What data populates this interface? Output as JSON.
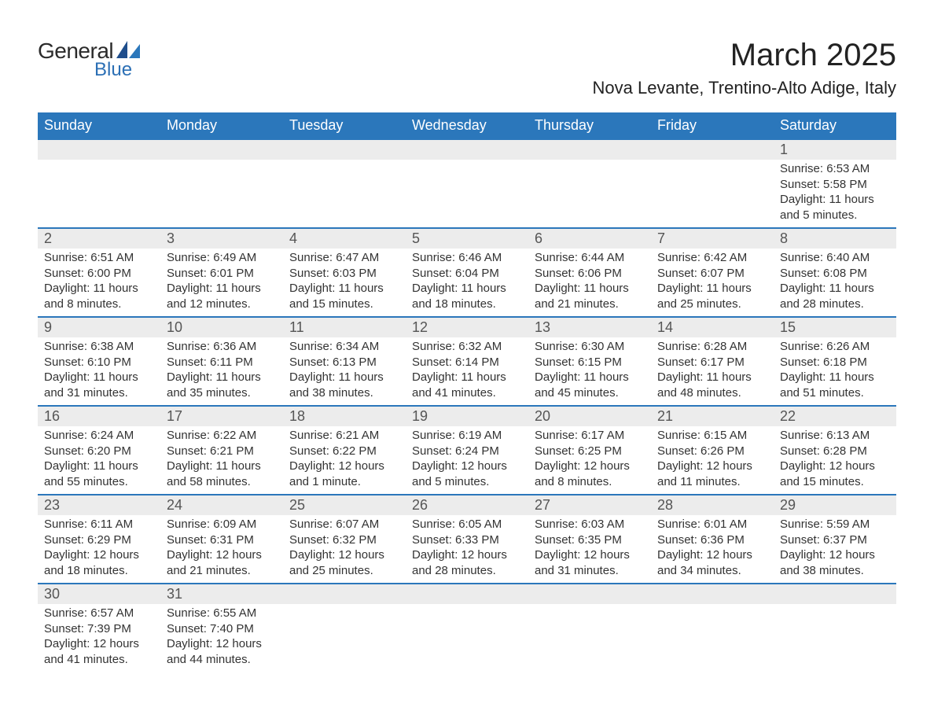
{
  "logo": {
    "general": "General",
    "blue": "Blue"
  },
  "title": "March 2025",
  "location": "Nova Levante, Trentino-Alto Adige, Italy",
  "colors": {
    "header_bg": "#2b77bb",
    "header_text": "#ffffff",
    "daynum_bg": "#ececec",
    "row_border": "#2b77bb",
    "body_text": "#333333",
    "page_bg": "#ffffff",
    "logo_blue": "#2b6fb5"
  },
  "typography": {
    "title_fontsize": 40,
    "location_fontsize": 22,
    "weekday_fontsize": 18,
    "daynum_fontsize": 18,
    "detail_fontsize": 15,
    "font_family": "Arial"
  },
  "weekdays": [
    "Sunday",
    "Monday",
    "Tuesday",
    "Wednesday",
    "Thursday",
    "Friday",
    "Saturday"
  ],
  "weeks": [
    [
      null,
      null,
      null,
      null,
      null,
      null,
      {
        "d": "1",
        "sr": "Sunrise: 6:53 AM",
        "ss": "Sunset: 5:58 PM",
        "dl1": "Daylight: 11 hours",
        "dl2": "and 5 minutes."
      }
    ],
    [
      {
        "d": "2",
        "sr": "Sunrise: 6:51 AM",
        "ss": "Sunset: 6:00 PM",
        "dl1": "Daylight: 11 hours",
        "dl2": "and 8 minutes."
      },
      {
        "d": "3",
        "sr": "Sunrise: 6:49 AM",
        "ss": "Sunset: 6:01 PM",
        "dl1": "Daylight: 11 hours",
        "dl2": "and 12 minutes."
      },
      {
        "d": "4",
        "sr": "Sunrise: 6:47 AM",
        "ss": "Sunset: 6:03 PM",
        "dl1": "Daylight: 11 hours",
        "dl2": "and 15 minutes."
      },
      {
        "d": "5",
        "sr": "Sunrise: 6:46 AM",
        "ss": "Sunset: 6:04 PM",
        "dl1": "Daylight: 11 hours",
        "dl2": "and 18 minutes."
      },
      {
        "d": "6",
        "sr": "Sunrise: 6:44 AM",
        "ss": "Sunset: 6:06 PM",
        "dl1": "Daylight: 11 hours",
        "dl2": "and 21 minutes."
      },
      {
        "d": "7",
        "sr": "Sunrise: 6:42 AM",
        "ss": "Sunset: 6:07 PM",
        "dl1": "Daylight: 11 hours",
        "dl2": "and 25 minutes."
      },
      {
        "d": "8",
        "sr": "Sunrise: 6:40 AM",
        "ss": "Sunset: 6:08 PM",
        "dl1": "Daylight: 11 hours",
        "dl2": "and 28 minutes."
      }
    ],
    [
      {
        "d": "9",
        "sr": "Sunrise: 6:38 AM",
        "ss": "Sunset: 6:10 PM",
        "dl1": "Daylight: 11 hours",
        "dl2": "and 31 minutes."
      },
      {
        "d": "10",
        "sr": "Sunrise: 6:36 AM",
        "ss": "Sunset: 6:11 PM",
        "dl1": "Daylight: 11 hours",
        "dl2": "and 35 minutes."
      },
      {
        "d": "11",
        "sr": "Sunrise: 6:34 AM",
        "ss": "Sunset: 6:13 PM",
        "dl1": "Daylight: 11 hours",
        "dl2": "and 38 minutes."
      },
      {
        "d": "12",
        "sr": "Sunrise: 6:32 AM",
        "ss": "Sunset: 6:14 PM",
        "dl1": "Daylight: 11 hours",
        "dl2": "and 41 minutes."
      },
      {
        "d": "13",
        "sr": "Sunrise: 6:30 AM",
        "ss": "Sunset: 6:15 PM",
        "dl1": "Daylight: 11 hours",
        "dl2": "and 45 minutes."
      },
      {
        "d": "14",
        "sr": "Sunrise: 6:28 AM",
        "ss": "Sunset: 6:17 PM",
        "dl1": "Daylight: 11 hours",
        "dl2": "and 48 minutes."
      },
      {
        "d": "15",
        "sr": "Sunrise: 6:26 AM",
        "ss": "Sunset: 6:18 PM",
        "dl1": "Daylight: 11 hours",
        "dl2": "and 51 minutes."
      }
    ],
    [
      {
        "d": "16",
        "sr": "Sunrise: 6:24 AM",
        "ss": "Sunset: 6:20 PM",
        "dl1": "Daylight: 11 hours",
        "dl2": "and 55 minutes."
      },
      {
        "d": "17",
        "sr": "Sunrise: 6:22 AM",
        "ss": "Sunset: 6:21 PM",
        "dl1": "Daylight: 11 hours",
        "dl2": "and 58 minutes."
      },
      {
        "d": "18",
        "sr": "Sunrise: 6:21 AM",
        "ss": "Sunset: 6:22 PM",
        "dl1": "Daylight: 12 hours",
        "dl2": "and 1 minute."
      },
      {
        "d": "19",
        "sr": "Sunrise: 6:19 AM",
        "ss": "Sunset: 6:24 PM",
        "dl1": "Daylight: 12 hours",
        "dl2": "and 5 minutes."
      },
      {
        "d": "20",
        "sr": "Sunrise: 6:17 AM",
        "ss": "Sunset: 6:25 PM",
        "dl1": "Daylight: 12 hours",
        "dl2": "and 8 minutes."
      },
      {
        "d": "21",
        "sr": "Sunrise: 6:15 AM",
        "ss": "Sunset: 6:26 PM",
        "dl1": "Daylight: 12 hours",
        "dl2": "and 11 minutes."
      },
      {
        "d": "22",
        "sr": "Sunrise: 6:13 AM",
        "ss": "Sunset: 6:28 PM",
        "dl1": "Daylight: 12 hours",
        "dl2": "and 15 minutes."
      }
    ],
    [
      {
        "d": "23",
        "sr": "Sunrise: 6:11 AM",
        "ss": "Sunset: 6:29 PM",
        "dl1": "Daylight: 12 hours",
        "dl2": "and 18 minutes."
      },
      {
        "d": "24",
        "sr": "Sunrise: 6:09 AM",
        "ss": "Sunset: 6:31 PM",
        "dl1": "Daylight: 12 hours",
        "dl2": "and 21 minutes."
      },
      {
        "d": "25",
        "sr": "Sunrise: 6:07 AM",
        "ss": "Sunset: 6:32 PM",
        "dl1": "Daylight: 12 hours",
        "dl2": "and 25 minutes."
      },
      {
        "d": "26",
        "sr": "Sunrise: 6:05 AM",
        "ss": "Sunset: 6:33 PM",
        "dl1": "Daylight: 12 hours",
        "dl2": "and 28 minutes."
      },
      {
        "d": "27",
        "sr": "Sunrise: 6:03 AM",
        "ss": "Sunset: 6:35 PM",
        "dl1": "Daylight: 12 hours",
        "dl2": "and 31 minutes."
      },
      {
        "d": "28",
        "sr": "Sunrise: 6:01 AM",
        "ss": "Sunset: 6:36 PM",
        "dl1": "Daylight: 12 hours",
        "dl2": "and 34 minutes."
      },
      {
        "d": "29",
        "sr": "Sunrise: 5:59 AM",
        "ss": "Sunset: 6:37 PM",
        "dl1": "Daylight: 12 hours",
        "dl2": "and 38 minutes."
      }
    ],
    [
      {
        "d": "30",
        "sr": "Sunrise: 6:57 AM",
        "ss": "Sunset: 7:39 PM",
        "dl1": "Daylight: 12 hours",
        "dl2": "and 41 minutes."
      },
      {
        "d": "31",
        "sr": "Sunrise: 6:55 AM",
        "ss": "Sunset: 7:40 PM",
        "dl1": "Daylight: 12 hours",
        "dl2": "and 44 minutes."
      },
      null,
      null,
      null,
      null,
      null
    ]
  ]
}
